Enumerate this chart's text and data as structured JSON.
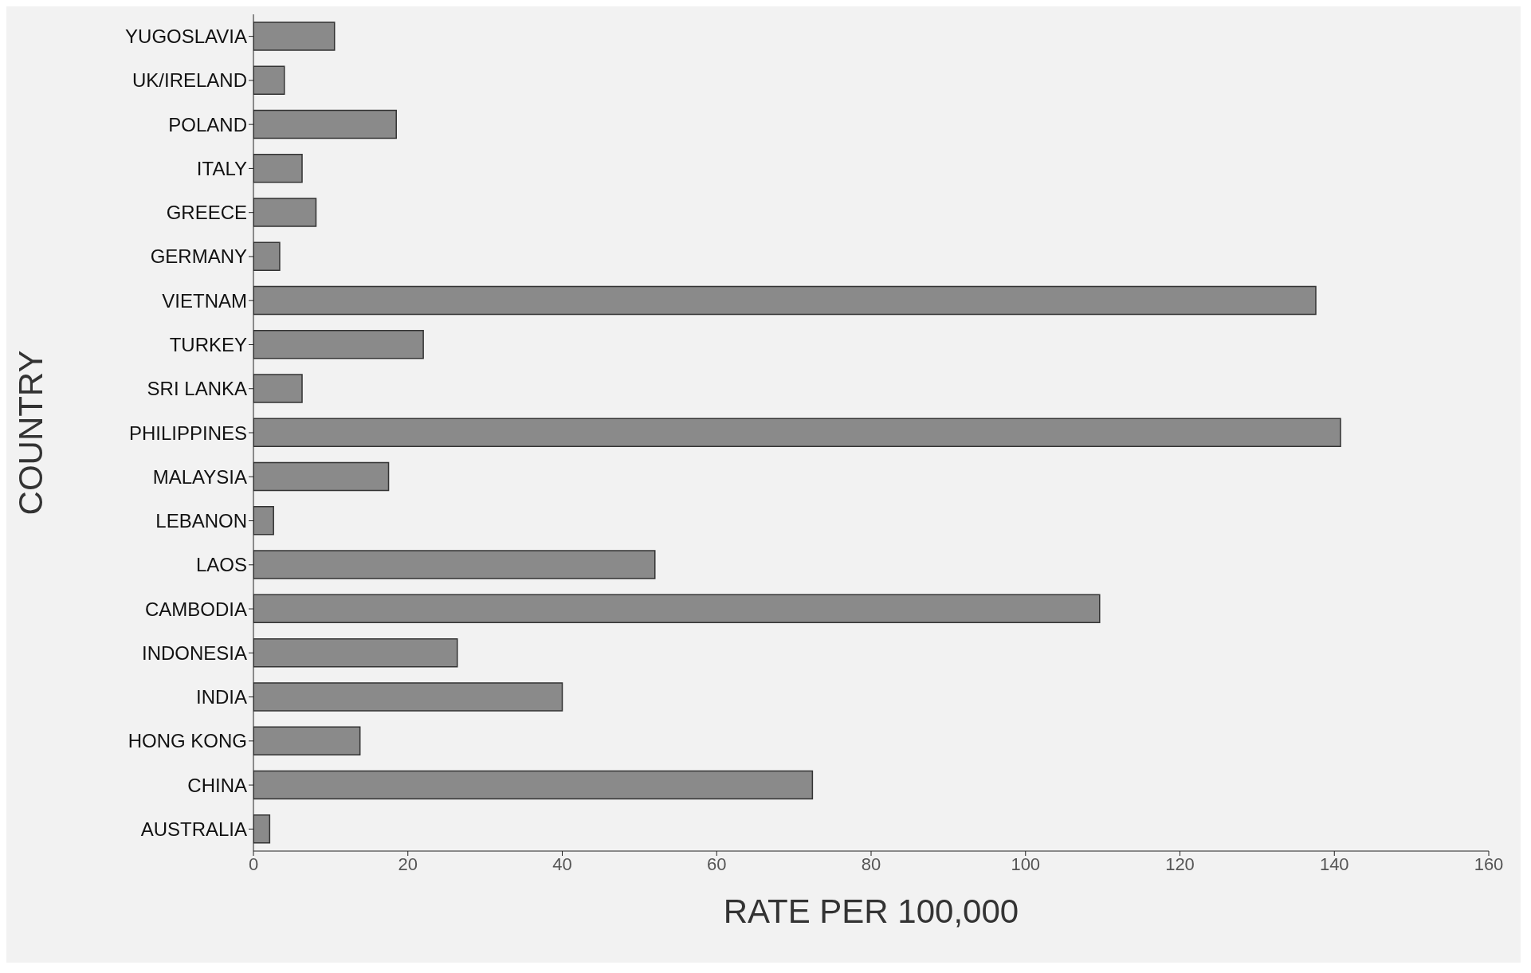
{
  "chart_data": {
    "type": "bar",
    "orientation": "horizontal",
    "categories": [
      "YUGOSLAVIA",
      "UK/IRELAND",
      "POLAND",
      "ITALY",
      "GREECE",
      "GERMANY",
      "VIETNAM",
      "TURKEY",
      "SRI LANKA",
      "PHILIPPINES",
      "MALAYSIA",
      "LEBANON",
      "LAOS",
      "CAMBODIA",
      "INDONESIA",
      "INDIA",
      "HONG KONG",
      "CHINA",
      "AUSTRALIA"
    ],
    "values": [
      10.5,
      4,
      18.5,
      6.3,
      8.1,
      3.4,
      137.6,
      22,
      6.3,
      140.8,
      17.5,
      2.6,
      52,
      109.6,
      26.4,
      40,
      13.8,
      72.4,
      2.1
    ],
    "color": "#8a8a8a",
    "xlabel": "RATE PER 100,000",
    "ylabel": "COUNTRY",
    "xlim": [
      0,
      160
    ],
    "xticks": [
      0,
      20,
      40,
      60,
      80,
      100,
      120,
      140,
      160
    ],
    "grid": false
  }
}
